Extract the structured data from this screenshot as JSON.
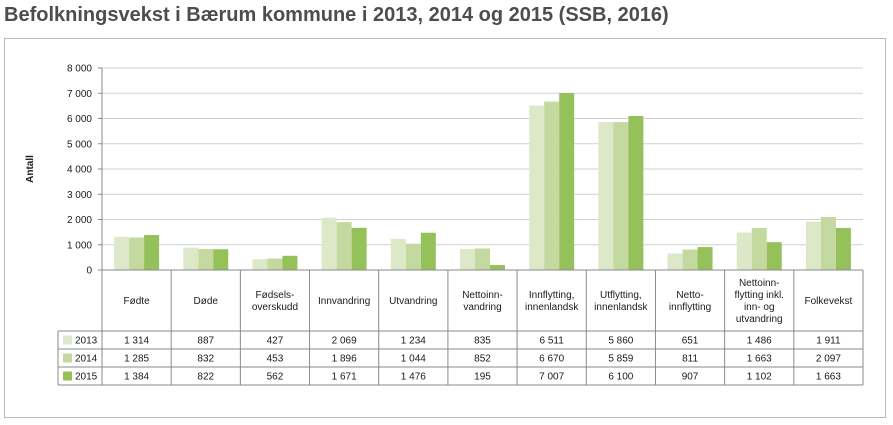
{
  "title": "Befolkningsvekst i Bærum kommune i 2013, 2014 og 2015 (SSB, 2016)",
  "chart_data": {
    "type": "bar",
    "ylabel": "Antall",
    "ylim": [
      0,
      8000
    ],
    "yticks": [
      "0",
      "1 000",
      "2 000",
      "3 000",
      "4 000",
      "5 000",
      "6 000",
      "7 000",
      "8 000"
    ],
    "ytick_values": [
      0,
      1000,
      2000,
      3000,
      4000,
      5000,
      6000,
      7000,
      8000
    ],
    "grid": true,
    "legend": "data-table",
    "categories": [
      "Fødte",
      "Døde",
      "Fødsels-\noverskudd",
      "Innvandring",
      "Utvandring",
      "Nettoinn-\nvandring",
      "Innflytting,\ninnenlandsk",
      "Utflytting,\ninnenlandsk",
      "Netto-\ninnflytting",
      "Nettoinn-\nflytting inkl.\ninn- og\nutvandring",
      "Folkevekst"
    ],
    "series": [
      {
        "name": "2013",
        "color": "#dde8c8",
        "values": [
          1314,
          887,
          427,
          2069,
          1234,
          835,
          6511,
          5860,
          651,
          1486,
          1911
        ],
        "labels": [
          "1 314",
          "887",
          "427",
          "2 069",
          "1 234",
          "835",
          "6 511",
          "5 860",
          "651",
          "1 486",
          "1 911"
        ]
      },
      {
        "name": "2014",
        "color": "#c4d9a0",
        "values": [
          1285,
          832,
          453,
          1896,
          1044,
          852,
          6670,
          5859,
          811,
          1663,
          2097
        ],
        "labels": [
          "1 285",
          "832",
          "453",
          "1 896",
          "1 044",
          "852",
          "6 670",
          "5 859",
          "811",
          "1 663",
          "2 097"
        ]
      },
      {
        "name": "2015",
        "color": "#95c15a",
        "values": [
          1384,
          822,
          562,
          1671,
          1476,
          195,
          7007,
          6100,
          907,
          1102,
          1663
        ],
        "labels": [
          "1 384",
          "822",
          "562",
          "1 671",
          "1 476",
          "195",
          "7 007",
          "6 100",
          "907",
          "1 102",
          "1 663"
        ]
      }
    ]
  }
}
